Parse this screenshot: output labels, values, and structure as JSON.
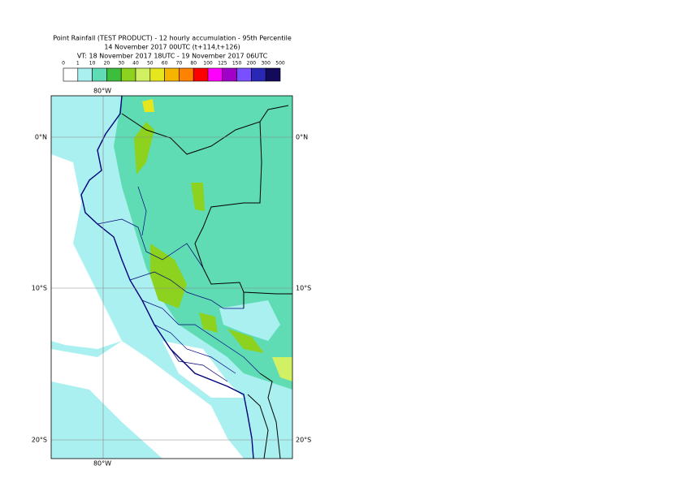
{
  "header": {
    "title": [
      "Point Rainfall (TEST PRODUCT) - 12 hourly accumulation - 95th Percentile",
      "14 November 2017 00UTC (t+114,t+126)",
      "VT: 18 November 2017 18UTC - 19 November 2017 06UTC"
    ]
  },
  "legend": {
    "labels": [
      0,
      1,
      10,
      20,
      30,
      40,
      50,
      60,
      70,
      80,
      100,
      125,
      150,
      200,
      300,
      500
    ],
    "colors": [
      "#ffffff",
      "#aaf0f0",
      "#5fdcb4",
      "#3cbe3c",
      "#8cd21e",
      "#d2f064",
      "#e6e61e",
      "#f5b400",
      "#ff8200",
      "#ff0000",
      "#ff00ff",
      "#a000c8",
      "#7850ff",
      "#2828b4",
      "#140a5a"
    ]
  },
  "map": {
    "lon_labels": [
      "80°W"
    ],
    "lat_labels": [
      "0°N",
      "10°S",
      "20°S"
    ]
  }
}
